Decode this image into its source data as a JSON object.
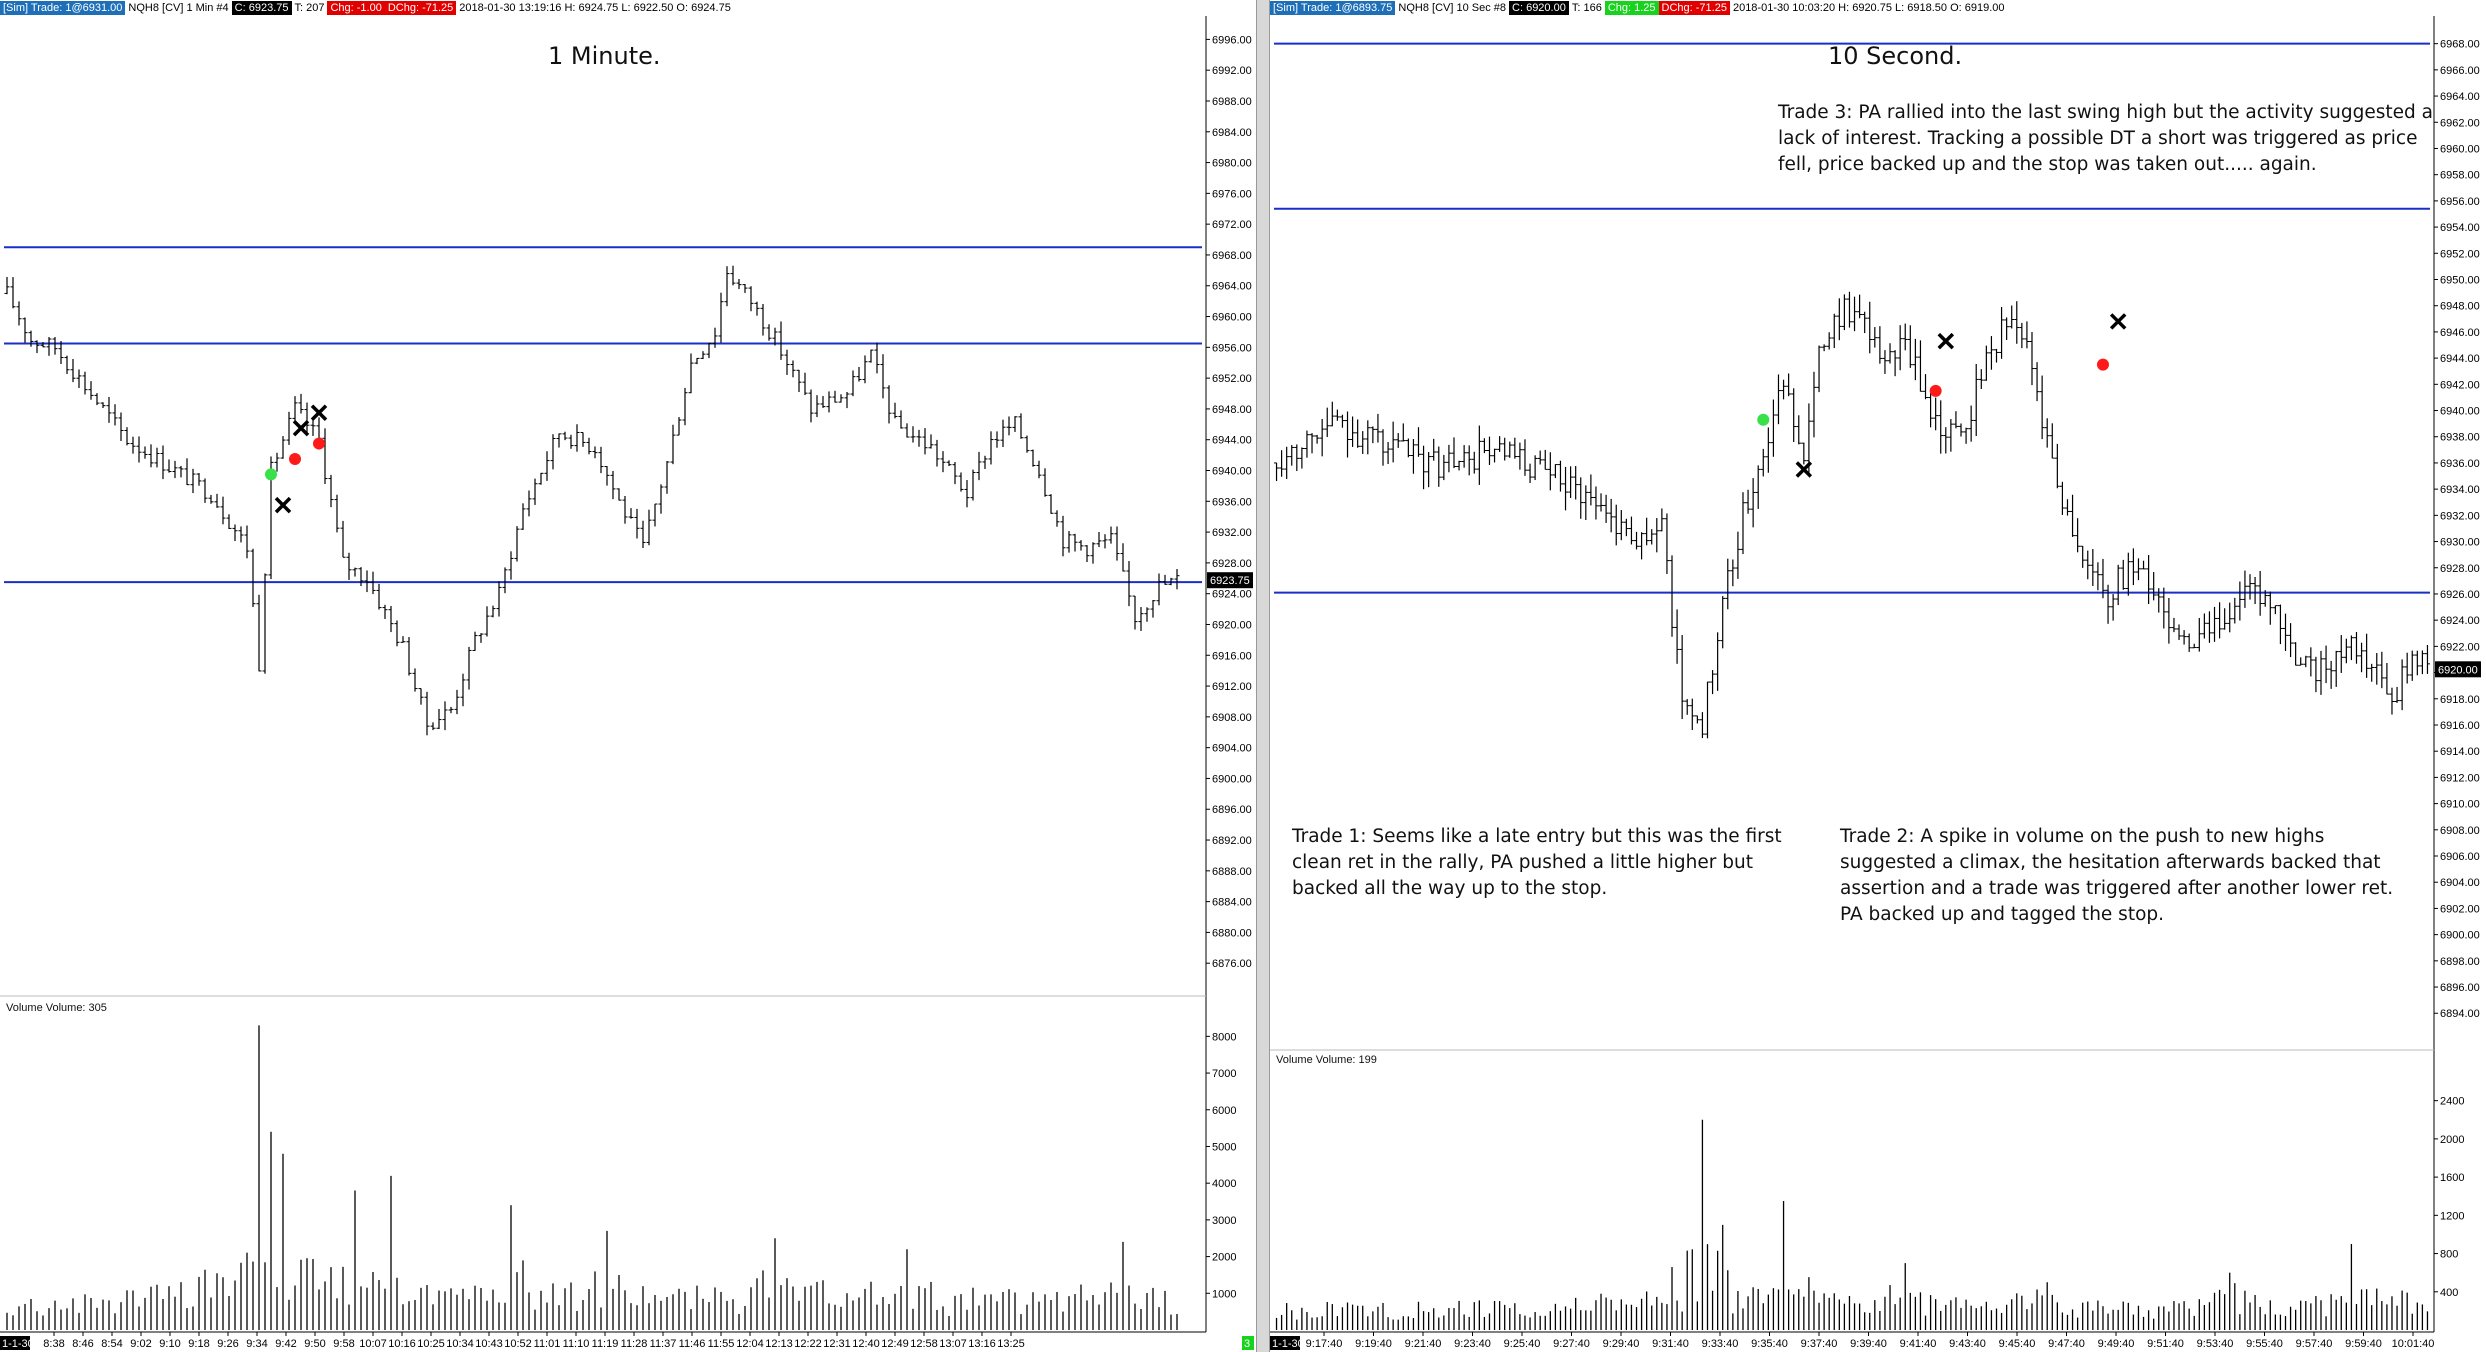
{
  "left": {
    "header": [
      {
        "text": "[Sim]  Trade: 1@6931.00",
        "style": "blue"
      },
      {
        "text": "NQH8 [CV]  1 Min  #4",
        "style": "plain"
      },
      {
        "text": "C: 6923.75",
        "style": "black"
      },
      {
        "text": "T: 207",
        "style": "plain"
      },
      {
        "text": "Chg: -1.00",
        "style": "red"
      },
      {
        "text": "DChg: -71.25",
        "style": "red"
      },
      {
        "text": "2018-01-30 13:19:16 H: 6924.75  L: 6922.50  O: 6924.75",
        "style": "plain"
      }
    ],
    "title": "1 Minute.",
    "volume_label": "Volume  Volume: 305",
    "price_badge": "6923.75",
    "date_badge": "1-1-30",
    "end_badge": "3",
    "x_ticks": [
      "8:38",
      "8:46",
      "8:54",
      "9:02",
      "9:10",
      "9:18",
      "9:26",
      "9:34",
      "9:42",
      "9:50",
      "9:58",
      "10:07",
      "10:16",
      "10:25",
      "10:34",
      "10:43",
      "10:52",
      "11:01",
      "11:10",
      "11:19",
      "11:28",
      "11:37",
      "11:46",
      "11:55",
      "12:04",
      "12:13",
      "12:22",
      "12:31",
      "12:40",
      "12:49",
      "12:58",
      "13:07",
      "13:16",
      "13:25"
    ]
  },
  "right": {
    "header": [
      {
        "text": "[Sim]  Trade: 1@6893.75",
        "style": "blue"
      },
      {
        "text": "NQH8 [CV]  10 Sec  #8",
        "style": "plain"
      },
      {
        "text": "C: 6920.00",
        "style": "black"
      },
      {
        "text": "T: 166",
        "style": "plain"
      },
      {
        "text": "Chg: 1.25",
        "style": "green"
      },
      {
        "text": "DChg: -71.25",
        "style": "red"
      },
      {
        "text": "2018-01-30 10:03:20 H: 6920.75  L: 6918.50  O: 6919.00",
        "style": "plain"
      }
    ],
    "title": "10 Second.",
    "volume_label": "Volume  Volume: 199",
    "price_badge": "6920.00",
    "date_badge": "1-1-30",
    "x_ticks": [
      "9:17:40",
      "9:19:40",
      "9:21:40",
      "9:23:40",
      "9:25:40",
      "9:27:40",
      "9:29:40",
      "9:31:40",
      "9:33:40",
      "9:35:40",
      "9:37:40",
      "9:39:40",
      "9:41:40",
      "9:43:40",
      "9:45:40",
      "9:47:40",
      "9:49:40",
      "9:51:40",
      "9:53:40",
      "9:55:40",
      "9:57:40",
      "9:59:40",
      "10:01:40"
    ],
    "notes": {
      "trade1": "Trade 1:  Seems like a late entry but this was the first clean ret in the rally, PA pushed a little higher but backed all the way up to the stop.",
      "trade2": "Trade 2:  A spike in volume on the push to new highs suggested a climax, the hesitation afterwards backed that assertion and a trade was triggered after another lower ret.  PA backed up and tagged the stop.",
      "trade3": "Trade 3:  PA rallied into the last swing high but the activity suggested a lack of interest.  Tracking a possible DT a short was triggered as price fell, price backed up and the stop was taken out..... again."
    }
  },
  "chart_data": [
    {
      "type": "bar",
      "name": "",
      "title": "1 Minute.",
      "price_axis": {
        "min": 6872.0,
        "max": 6998.0,
        "ticks": [
          6996,
          6992,
          6988,
          6984,
          6980,
          6976,
          6972,
          6968,
          6964,
          6960,
          6956,
          6952,
          6948,
          6944,
          6940,
          6936,
          6932,
          6928,
          6924,
          6920,
          6916,
          6912,
          6908,
          6904,
          6900,
          6896,
          6892,
          6888,
          6884,
          6880,
          6876
        ]
      },
      "volume_axis": {
        "max": 8500,
        "ticks": [
          8000,
          7000,
          6000,
          5000,
          4000,
          3000,
          2000,
          1000
        ]
      },
      "price_path": [
        [
          0,
          6963
        ],
        [
          4,
          6957
        ],
        [
          8,
          6956
        ],
        [
          14,
          6950
        ],
        [
          20,
          6944
        ],
        [
          28,
          6940
        ],
        [
          34,
          6937
        ],
        [
          40,
          6930
        ],
        [
          42,
          6915
        ],
        [
          44,
          6940
        ],
        [
          48,
          6948
        ],
        [
          52,
          6944
        ],
        [
          56,
          6928
        ],
        [
          60,
          6926
        ],
        [
          66,
          6917
        ],
        [
          70,
          6907
        ],
        [
          74,
          6909
        ],
        [
          78,
          6918
        ],
        [
          82,
          6924
        ],
        [
          86,
          6935
        ],
        [
          92,
          6945
        ],
        [
          98,
          6943
        ],
        [
          102,
          6936
        ],
        [
          106,
          6930
        ],
        [
          110,
          6941
        ],
        [
          114,
          6954
        ],
        [
          118,
          6958
        ],
        [
          120,
          6966
        ],
        [
          124,
          6962
        ],
        [
          128,
          6957
        ],
        [
          134,
          6948
        ],
        [
          140,
          6950
        ],
        [
          144,
          6955
        ],
        [
          148,
          6946
        ],
        [
          154,
          6943
        ],
        [
          160,
          6937
        ],
        [
          164,
          6944
        ],
        [
          168,
          6946
        ],
        [
          172,
          6940
        ],
        [
          176,
          6931
        ],
        [
          180,
          6930
        ],
        [
          184,
          6931
        ],
        [
          188,
          6921
        ],
        [
          192,
          6925
        ],
        [
          196,
          6926
        ]
      ],
      "volume_spikes": [
        [
          42,
          8300
        ],
        [
          44,
          5400
        ],
        [
          46,
          4800
        ],
        [
          58,
          3800
        ],
        [
          64,
          4200
        ],
        [
          84,
          3400
        ],
        [
          100,
          2700
        ],
        [
          128,
          2500
        ],
        [
          150,
          2200
        ],
        [
          186,
          2400
        ]
      ],
      "horizontal_lines": [
        6969,
        6956.5,
        6925.5
      ],
      "markers": [
        {
          "kind": "entry",
          "i": 44,
          "price": 6939.5,
          "color": "#38e04a"
        },
        {
          "kind": "stop",
          "i": 48,
          "price": 6941.5,
          "color": "#ff1a1a"
        },
        {
          "kind": "stop",
          "i": 52,
          "price": 6943.5,
          "color": "#ff1a1a"
        },
        {
          "kind": "exit",
          "i": 46,
          "price": 6935.5
        },
        {
          "kind": "exit",
          "i": 49,
          "price": 6945.5
        },
        {
          "kind": "exit",
          "i": 52,
          "price": 6947.5
        }
      ],
      "bars": 196
    },
    {
      "type": "bar",
      "name": "",
      "title": "10 Second.",
      "price_axis": {
        "min": 6891.5,
        "max": 6969.5,
        "ticks": [
          6968,
          6966,
          6964,
          6962,
          6960,
          6958,
          6956,
          6954,
          6952,
          6950,
          6948,
          6946,
          6944,
          6942,
          6940,
          6938,
          6936,
          6934,
          6932,
          6930,
          6928,
          6926,
          6924,
          6922,
          6920,
          6918,
          6916,
          6914,
          6912,
          6910,
          6908,
          6906,
          6904,
          6902,
          6900,
          6898,
          6896,
          6894
        ]
      },
      "volume_axis": {
        "max": 2700,
        "ticks": [
          2400,
          2000,
          1600,
          1200,
          800,
          400
        ]
      },
      "price_path": [
        [
          0,
          6936
        ],
        [
          6,
          6938
        ],
        [
          12,
          6939
        ],
        [
          18,
          6938
        ],
        [
          24,
          6937
        ],
        [
          30,
          6936
        ],
        [
          36,
          6936
        ],
        [
          42,
          6937
        ],
        [
          48,
          6936
        ],
        [
          54,
          6935
        ],
        [
          60,
          6934
        ],
        [
          66,
          6932
        ],
        [
          72,
          6930
        ],
        [
          76,
          6931
        ],
        [
          80,
          6918
        ],
        [
          84,
          6916
        ],
        [
          88,
          6925
        ],
        [
          92,
          6932
        ],
        [
          96,
          6937
        ],
        [
          100,
          6942
        ],
        [
          104,
          6937
        ],
        [
          108,
          6946
        ],
        [
          112,
          6948
        ],
        [
          116,
          6946
        ],
        [
          120,
          6944
        ],
        [
          124,
          6945
        ],
        [
          128,
          6941
        ],
        [
          132,
          6938
        ],
        [
          136,
          6939
        ],
        [
          140,
          6944
        ],
        [
          144,
          6947
        ],
        [
          148,
          6945
        ],
        [
          152,
          6938
        ],
        [
          156,
          6932
        ],
        [
          160,
          6928
        ],
        [
          164,
          6926
        ],
        [
          168,
          6928
        ],
        [
          172,
          6927
        ],
        [
          176,
          6924
        ],
        [
          180,
          6922
        ],
        [
          184,
          6923
        ],
        [
          188,
          6925
        ],
        [
          192,
          6926
        ],
        [
          196,
          6925
        ],
        [
          200,
          6922
        ],
        [
          204,
          6920
        ],
        [
          208,
          6921
        ],
        [
          212,
          6922
        ],
        [
          216,
          6920
        ],
        [
          220,
          6918
        ],
        [
          224,
          6921
        ],
        [
          228,
          6920
        ]
      ],
      "volume_spikes": [
        [
          84,
          2200
        ],
        [
          88,
          1100
        ],
        [
          100,
          1350
        ],
        [
          124,
          700
        ],
        [
          152,
          500
        ],
        [
          188,
          600
        ],
        [
          212,
          900
        ]
      ],
      "horizontal_lines": [
        6968.0,
        6955.4,
        6926.1
      ],
      "markers": [
        {
          "kind": "entry",
          "i": 96,
          "price": 6939.3,
          "color": "#38e04a"
        },
        {
          "kind": "stop",
          "i": 130,
          "price": 6941.5,
          "color": "#ff1a1a"
        },
        {
          "kind": "stop",
          "i": 163,
          "price": 6943.5,
          "color": "#ff1a1a"
        },
        {
          "kind": "exit",
          "i": 104,
          "price": 6935.5
        },
        {
          "kind": "exit",
          "i": 132,
          "price": 6945.3
        },
        {
          "kind": "exit",
          "i": 166,
          "price": 6946.8
        }
      ],
      "bars": 228
    }
  ]
}
